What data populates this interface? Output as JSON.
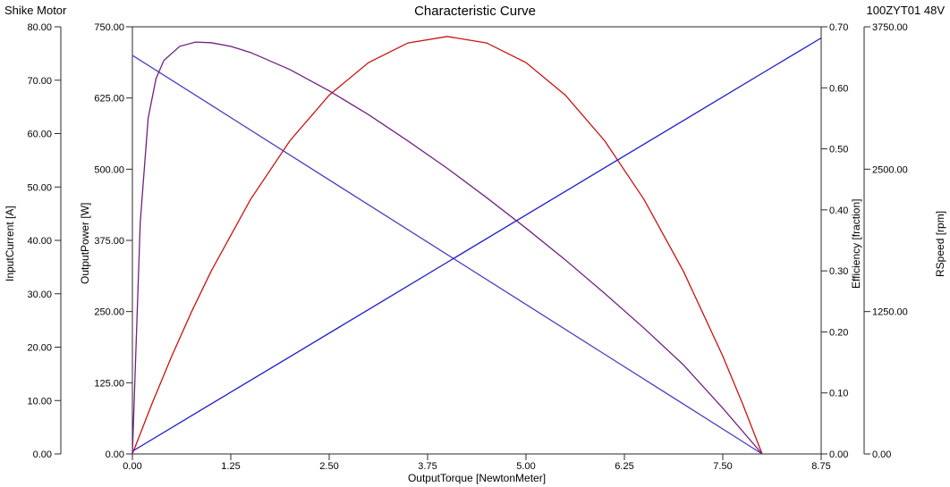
{
  "header": {
    "title": "Characteristic Curve",
    "top_left": "Shike Motor",
    "top_right": "100ZYT01 48V"
  },
  "chart_data": {
    "type": "line",
    "title": "Characteristic Curve",
    "xlabel": "OutputTorque [NewtonMeter]",
    "xlim": [
      0,
      8.75
    ],
    "x_tick_values": [
      0,
      1.25,
      2.5,
      3.75,
      5,
      6.25,
      7.5,
      8.75
    ],
    "x_tick_labels": [
      "0.00",
      "1.25",
      "2.50",
      "3.75",
      "5.00",
      "6.25",
      "7.50",
      "8.75"
    ],
    "grid": false,
    "legend": "none",
    "axes": [
      {
        "id": "current",
        "label": "InputCurrent [A]",
        "position": "left-outer",
        "min": 0,
        "max": 80,
        "tick_step": 10,
        "tick_labels": [
          "0.00",
          "10.00",
          "20.00",
          "30.00",
          "40.00",
          "50.00",
          "60.00",
          "70.00",
          "80.00"
        ]
      },
      {
        "id": "power",
        "label": "OutputPower [W]",
        "position": "left-inner",
        "min": 0,
        "max": 750,
        "tick_step": 125,
        "tick_labels": [
          "0.00",
          "125.00",
          "250.00",
          "375.00",
          "500.00",
          "625.00",
          "750.00"
        ]
      },
      {
        "id": "efficiency",
        "label": "Efficiency [fraction]",
        "position": "right-inner",
        "min": 0,
        "max": 0.7,
        "tick_step": 0.1,
        "tick_labels": [
          "0.00",
          "0.10",
          "0.20",
          "0.30",
          "0.40",
          "0.50",
          "0.60",
          "0.70"
        ]
      },
      {
        "id": "rspeed",
        "label": "RSpeed [rpm]",
        "position": "right-outer",
        "min": 0,
        "max": 3750,
        "tick_step": 1250,
        "tick_labels": [
          "0.00",
          "1250.00",
          "2500.00",
          "3750.00"
        ]
      }
    ],
    "series": [
      {
        "name": "OutputPower",
        "axis": "power",
        "color": "#cc1111",
        "points": [
          [
            0,
            0
          ],
          [
            0.25,
            88.7
          ],
          [
            0.5,
            171.8
          ],
          [
            0.75,
            249.2
          ],
          [
            1,
            320.7
          ],
          [
            1.5,
            446.7
          ],
          [
            2,
            549.8
          ],
          [
            2.5,
            630.0
          ],
          [
            3,
            687.3
          ],
          [
            3.5,
            721.6
          ],
          [
            4,
            733.0
          ],
          [
            4.5,
            721.6
          ],
          [
            5,
            687.3
          ],
          [
            5.5,
            630.0
          ],
          [
            6,
            549.8
          ],
          [
            6.5,
            446.7
          ],
          [
            7,
            320.7
          ],
          [
            7.5,
            171.8
          ],
          [
            7.75,
            88.7
          ],
          [
            8,
            0
          ]
        ]
      },
      {
        "name": "RSpeed",
        "axis": "rspeed",
        "color": "#4a3fc0",
        "points": [
          [
            0,
            3500
          ],
          [
            1,
            3062.5
          ],
          [
            2,
            2625
          ],
          [
            3,
            2187.5
          ],
          [
            4,
            1750
          ],
          [
            5,
            1312.5
          ],
          [
            6,
            875
          ],
          [
            7,
            437.5
          ],
          [
            8,
            0
          ]
        ]
      },
      {
        "name": "InputCurrent",
        "axis": "current",
        "color": "#1a1acc",
        "points": [
          [
            0,
            0.5
          ],
          [
            1,
            9.35
          ],
          [
            2,
            18.2
          ],
          [
            3,
            27.05
          ],
          [
            4,
            35.9
          ],
          [
            5,
            44.75
          ],
          [
            6,
            53.6
          ],
          [
            7,
            62.45
          ],
          [
            8,
            71.3
          ],
          [
            8.75,
            77.9
          ]
        ]
      },
      {
        "name": "Efficiency",
        "axis": "efficiency",
        "color": "#702080",
        "points": [
          [
            0,
            0
          ],
          [
            0.1,
            0.38
          ],
          [
            0.2,
            0.55
          ],
          [
            0.3,
            0.615
          ],
          [
            0.4,
            0.645
          ],
          [
            0.6,
            0.668
          ],
          [
            0.8,
            0.675
          ],
          [
            1,
            0.674
          ],
          [
            1.25,
            0.668
          ],
          [
            1.5,
            0.658
          ],
          [
            2,
            0.63
          ],
          [
            2.5,
            0.595
          ],
          [
            3,
            0.556
          ],
          [
            3.5,
            0.513
          ],
          [
            4,
            0.468
          ],
          [
            4.5,
            0.42
          ],
          [
            5,
            0.37
          ],
          [
            5.5,
            0.318
          ],
          [
            6,
            0.263
          ],
          [
            6.5,
            0.206
          ],
          [
            7,
            0.146
          ],
          [
            7.5,
            0.075
          ],
          [
            8,
            0
          ]
        ]
      }
    ]
  }
}
